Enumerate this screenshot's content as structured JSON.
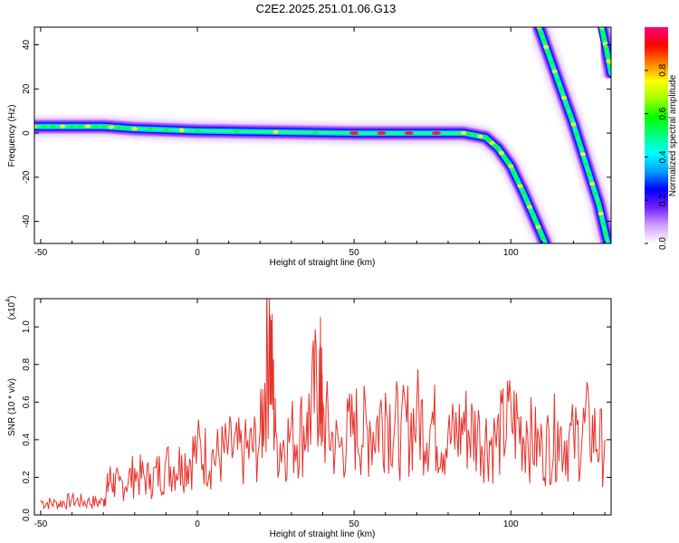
{
  "title": "C2E2.2025.251.01.06.G13",
  "chart_data": [
    {
      "type": "heatmap",
      "xlabel": "Height of straight line (km)",
      "ylabel": "Frequency (Hz)",
      "xlim": [
        -52,
        132
      ],
      "ylim": [
        -50,
        48
      ],
      "xticks": [
        -50,
        0,
        50,
        100
      ],
      "yticks": [
        -40,
        -20,
        0,
        20,
        40
      ],
      "colorbar": {
        "label": "Normalized spectral amplitude",
        "range": [
          0,
          1
        ],
        "ticks": [
          "0.0",
          "0.2",
          "0.4",
          "0.6",
          "0.8"
        ],
        "colors": [
          "#ffffff",
          "#d0a0ff",
          "#7020ff",
          "#0000ff",
          "#00a0ff",
          "#00ffff",
          "#00ff80",
          "#00ff00",
          "#a0ff00",
          "#ffff00",
          "#ff8000",
          "#ff0000",
          "#ff0080"
        ]
      },
      "tracks": [
        {
          "x": [
            -52,
            -40,
            -30,
            -20,
            0,
            50,
            85,
            92,
            96,
            100,
            104,
            108,
            111
          ],
          "y": [
            3,
            3,
            3,
            2,
            1,
            0,
            0,
            -2,
            -7,
            -15,
            -27,
            -40,
            -50
          ]
        },
        {
          "x": [
            109,
            112,
            116,
            120,
            124,
            128,
            131
          ],
          "y": [
            48,
            36,
            20,
            4,
            -14,
            -32,
            -50
          ]
        },
        {
          "x": [
            129,
            130.5,
            132
          ],
          "y": [
            48,
            38,
            27
          ]
        }
      ]
    },
    {
      "type": "line",
      "xlabel": "Height of straight line (km)",
      "ylabel": "SNR (10 * v/v)",
      "yunit_label": "(x10",
      "yunit_exp": "4",
      "xlim": [
        -52,
        132
      ],
      "ylim": [
        0,
        1.15
      ],
      "xticks": [
        -50,
        0,
        50,
        100
      ],
      "yticks": [
        "0.0",
        "0.2",
        "0.4",
        "0.6",
        "0.8",
        "1.0"
      ],
      "series": [
        {
          "color": "#e8302a",
          "x": [
            -50,
            -45,
            -40,
            -35,
            -30,
            -28,
            -25,
            -20,
            -15,
            -10,
            -5,
            0,
            5,
            10,
            15,
            20,
            23,
            25,
            30,
            35,
            39,
            40,
            45,
            50,
            55,
            60,
            65,
            70,
            75,
            80,
            85,
            90,
            95,
            100,
            105,
            110,
            115,
            120,
            125,
            130
          ],
          "y": [
            0.08,
            0.07,
            0.09,
            0.08,
            0.08,
            0.22,
            0.18,
            0.25,
            0.22,
            0.3,
            0.32,
            0.4,
            0.35,
            0.4,
            0.38,
            0.45,
            1.15,
            0.45,
            0.48,
            0.55,
            0.88,
            0.6,
            0.4,
            0.55,
            0.5,
            0.65,
            0.5,
            0.6,
            0.55,
            0.45,
            0.55,
            0.5,
            0.45,
            0.6,
            0.5,
            0.4,
            0.5,
            0.45,
            0.55,
            0.4
          ]
        }
      ]
    }
  ]
}
